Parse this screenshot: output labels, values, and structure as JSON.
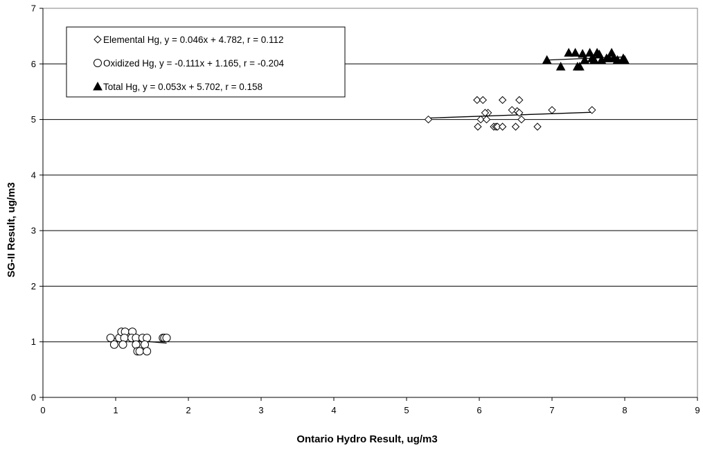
{
  "chart_data": {
    "type": "scatter",
    "xlabel": "Ontario Hydro Result, ug/m3",
    "ylabel": "SG-II Result, ug/m3",
    "xlim": [
      0,
      9
    ],
    "ylim": [
      0,
      7
    ],
    "xticks": [
      "0",
      "1",
      "2",
      "3",
      "4",
      "5",
      "6",
      "7",
      "8",
      "9"
    ],
    "yticks": [
      "0",
      "1",
      "2",
      "3",
      "4",
      "5",
      "6",
      "7"
    ],
    "grid": "horizontal",
    "legend_position": "top-left",
    "series": [
      {
        "name": "Elemental Hg, y = 0.046x + 4.782, r = 0.112",
        "marker": "diamond",
        "color": "#000000",
        "trendline": {
          "slope": 0.046,
          "intercept": 4.782,
          "x_range": [
            5.3,
            7.55
          ]
        },
        "points": [
          [
            5.3,
            5.0
          ],
          [
            5.97,
            5.35
          ],
          [
            6.05,
            5.35
          ],
          [
            6.32,
            5.35
          ],
          [
            6.55,
            5.35
          ],
          [
            6.12,
            5.12
          ],
          [
            6.08,
            5.12
          ],
          [
            6.52,
            5.15
          ],
          [
            6.55,
            5.12
          ],
          [
            6.45,
            5.17
          ],
          [
            7.0,
            5.17
          ],
          [
            7.55,
            5.17
          ],
          [
            6.02,
            5.0
          ],
          [
            6.1,
            5.0
          ],
          [
            6.58,
            5.0
          ],
          [
            5.98,
            4.87
          ],
          [
            6.2,
            4.87
          ],
          [
            6.23,
            4.87
          ],
          [
            6.25,
            4.87
          ],
          [
            6.32,
            4.87
          ],
          [
            6.5,
            4.87
          ],
          [
            6.8,
            4.87
          ]
        ]
      },
      {
        "name": "Oxidized Hg, y = -0.111x + 1.165, r = -0.204",
        "marker": "circle",
        "color": "#000000",
        "trendline": {
          "slope": -0.111,
          "intercept": 1.165,
          "x_range": [
            0.93,
            1.7
          ]
        },
        "points": [
          [
            0.93,
            1.07
          ],
          [
            1.05,
            1.07
          ],
          [
            1.08,
            1.18
          ],
          [
            1.13,
            1.18
          ],
          [
            1.23,
            1.18
          ],
          [
            1.12,
            1.07
          ],
          [
            1.22,
            1.07
          ],
          [
            1.28,
            1.07
          ],
          [
            1.37,
            1.07
          ],
          [
            1.43,
            1.07
          ],
          [
            1.65,
            1.07
          ],
          [
            1.67,
            1.07
          ],
          [
            1.7,
            1.07
          ],
          [
            0.98,
            0.95
          ],
          [
            1.1,
            0.95
          ],
          [
            1.28,
            0.95
          ],
          [
            1.4,
            0.95
          ],
          [
            1.3,
            0.83
          ],
          [
            1.33,
            0.83
          ],
          [
            1.43,
            0.83
          ]
        ]
      },
      {
        "name": "Total Hg, y = 0.053x + 5.702, r = 0.158",
        "marker": "triangle",
        "color": "#000000",
        "trendline": {
          "slope": 0.053,
          "intercept": 5.702,
          "x_range": [
            6.93,
            8.0
          ]
        },
        "points": [
          [
            6.93,
            6.07
          ],
          [
            7.12,
            5.95
          ],
          [
            7.23,
            6.2
          ],
          [
            7.32,
            6.2
          ],
          [
            7.35,
            5.95
          ],
          [
            7.38,
            5.95
          ],
          [
            7.42,
            6.18
          ],
          [
            7.45,
            6.07
          ],
          [
            7.52,
            6.2
          ],
          [
            7.55,
            6.1
          ],
          [
            7.58,
            6.07
          ],
          [
            7.62,
            6.2
          ],
          [
            7.65,
            6.17
          ],
          [
            7.68,
            6.07
          ],
          [
            7.75,
            6.1
          ],
          [
            7.78,
            6.1
          ],
          [
            7.82,
            6.2
          ],
          [
            7.85,
            6.1
          ],
          [
            7.9,
            6.07
          ],
          [
            7.98,
            6.1
          ],
          [
            8.0,
            6.07
          ]
        ]
      }
    ]
  }
}
